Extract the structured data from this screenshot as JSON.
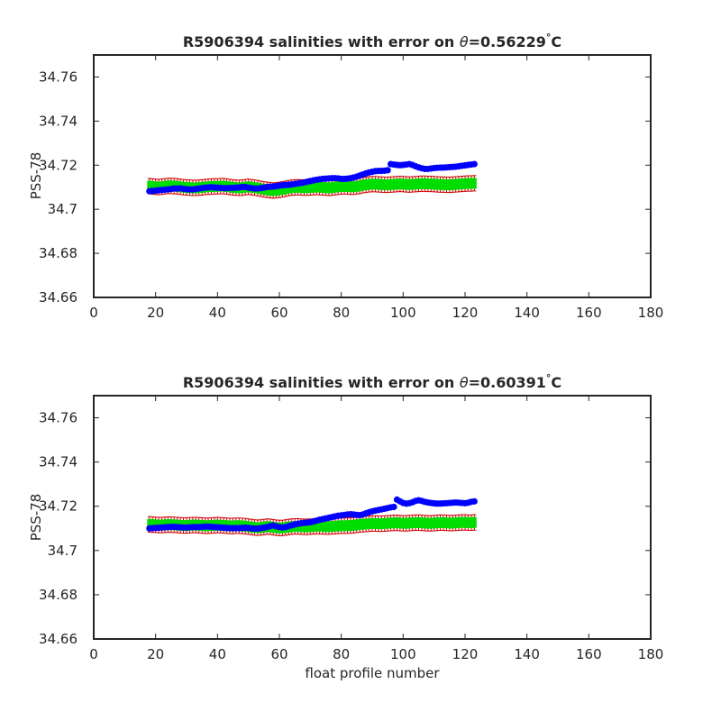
{
  "chart_data": [
    {
      "type": "scatter",
      "title_prefix": "R5906394 salinities with error on ",
      "title_theta": "θ",
      "title_value": "=0.56229",
      "title_degree": "°",
      "title_unit": "C",
      "xlabel": "",
      "ylabel": "PSS-78",
      "xlim": [
        0,
        180
      ],
      "ylim": [
        34.66,
        34.77
      ],
      "xticks": [
        "0",
        "20",
        "40",
        "60",
        "80",
        "100",
        "120",
        "140",
        "160",
        "180"
      ],
      "yticks": [
        "34.66",
        "34.68",
        "34.7",
        "34.72",
        "34.74",
        "34.76"
      ],
      "grid": false,
      "series": [
        {
          "role": "measured",
          "color": "#0000ff",
          "x_start": 18,
          "x_step": 1,
          "values": [
            34.7082,
            34.7083,
            34.7084,
            34.7086,
            34.7087,
            34.7089,
            34.709,
            34.7092,
            34.7094,
            34.7094,
            34.7095,
            34.7093,
            34.7091,
            34.709,
            34.709,
            34.7092,
            34.7094,
            34.7096,
            34.7098,
            34.7099,
            34.71,
            34.7099,
            34.7098,
            34.7097,
            34.7096,
            34.7096,
            34.7097,
            34.7097,
            34.7098,
            34.7099,
            34.7101,
            34.7101,
            34.7098,
            34.7096,
            34.7094,
            34.7094,
            34.7096,
            34.7098,
            34.7101,
            34.7102,
            34.7103,
            34.7105,
            34.7107,
            34.7109,
            34.711,
            34.7111,
            34.7113,
            34.7115,
            34.7117,
            34.7119,
            34.7122,
            34.7125,
            34.7128,
            34.7131,
            34.7134,
            34.7136,
            34.7138,
            34.7139,
            34.714,
            34.7141,
            34.7141,
            34.714,
            34.7138,
            34.7138,
            34.7139,
            34.7141,
            34.7144,
            34.7148,
            34.7153,
            34.7158,
            34.7163,
            34.7167,
            34.717,
            34.7173,
            34.7174,
            34.7174,
            34.7175,
            34.7177,
            34.7205,
            34.7203,
            34.7201,
            34.72,
            34.7201,
            34.7203,
            34.7205,
            34.7201,
            34.7195,
            34.719,
            34.7186,
            34.7183,
            34.7183,
            34.7185,
            34.7187,
            34.7188,
            34.7189,
            34.7189,
            34.719,
            34.7191,
            34.7192,
            34.7193,
            34.7195,
            34.7197,
            34.7199,
            34.7201,
            34.7203,
            34.7205
          ]
        },
        {
          "role": "mapped",
          "color": "#00dd00",
          "x_start": 18,
          "x_step": 1,
          "values": [
            34.7105,
            34.7103,
            34.7102,
            34.7101,
            34.7102,
            34.7104,
            34.7106,
            34.7106,
            34.7105,
            34.7104,
            34.7102,
            34.71,
            34.7099,
            34.7098,
            34.7097,
            34.7097,
            34.7098,
            34.7099,
            34.7101,
            34.7102,
            34.7103,
            34.7104,
            34.7104,
            34.7105,
            34.7105,
            34.7103,
            34.7101,
            34.7099,
            34.7098,
            34.7097,
            34.7098,
            34.71,
            34.7102,
            34.71,
            34.7098,
            34.7096,
            34.7093,
            34.709,
            34.7088,
            34.7086,
            34.7085,
            34.7086,
            34.7088,
            34.709,
            34.7093,
            34.7096,
            34.7098,
            34.7099,
            34.71,
            34.7099,
            34.7098,
            34.7098,
            34.7099,
            34.71,
            34.7101,
            34.71,
            34.7099,
            34.7098,
            34.7097,
            34.7098,
            34.71,
            34.7102,
            34.7103,
            34.7104,
            34.7103,
            34.7102,
            34.7102,
            34.7104,
            34.7106,
            34.7109,
            34.7111,
            34.7113,
            34.7114,
            34.7114,
            34.7113,
            34.7112,
            34.7111,
            34.7111,
            34.7112,
            34.7113,
            34.7114,
            34.7115,
            34.7114,
            34.7113,
            34.7112,
            34.7113,
            34.7114,
            34.7115,
            34.7116,
            34.7116,
            34.7115,
            34.7115,
            34.7114,
            34.7113,
            34.7112,
            34.7112,
            34.7111,
            34.7111,
            34.7112,
            34.7113,
            34.7114,
            34.7115,
            34.7116,
            34.7117,
            34.7117,
            34.7118
          ]
        }
      ],
      "error_half_width": 0.0035,
      "error_color": "#cc0000"
    },
    {
      "type": "scatter",
      "title_prefix": "R5906394 salinities with error on ",
      "title_theta": "θ",
      "title_value": "=0.60391",
      "title_degree": "°",
      "title_unit": "C",
      "xlabel": "float profile number",
      "ylabel": "PSS-78",
      "xlim": [
        0,
        180
      ],
      "ylim": [
        34.66,
        34.77
      ],
      "xticks": [
        "0",
        "20",
        "40",
        "60",
        "80",
        "100",
        "120",
        "140",
        "160",
        "180"
      ],
      "yticks": [
        "34.66",
        "34.68",
        "34.7",
        "34.72",
        "34.74",
        "34.76"
      ],
      "grid": false,
      "series": [
        {
          "role": "measured",
          "color": "#0000ff",
          "x_start": 18,
          "x_step": 1,
          "values": [
            34.71,
            34.7101,
            34.7102,
            34.7103,
            34.7104,
            34.7105,
            34.7106,
            34.7107,
            34.7107,
            34.7106,
            34.7105,
            34.7104,
            34.7104,
            34.7105,
            34.7106,
            34.7106,
            34.7106,
            34.7107,
            34.7108,
            34.7108,
            34.7107,
            34.7106,
            34.7105,
            34.7104,
            34.7103,
            34.7102,
            34.7101,
            34.7101,
            34.7101,
            34.7101,
            34.7102,
            34.7103,
            34.7102,
            34.71,
            34.7099,
            34.7099,
            34.7101,
            34.7103,
            34.7106,
            34.711,
            34.7113,
            34.7109,
            34.7106,
            34.7104,
            34.7106,
            34.711,
            34.7114,
            34.7118,
            34.7121,
            34.7123,
            34.7125,
            34.7126,
            34.7128,
            34.7131,
            34.7135,
            34.7139,
            34.7142,
            34.7145,
            34.7148,
            34.7151,
            34.7154,
            34.7157,
            34.7159,
            34.7161,
            34.7163,
            34.7164,
            34.7163,
            34.7161,
            34.716,
            34.7163,
            34.7168,
            34.7173,
            34.7177,
            34.718,
            34.7183,
            34.7186,
            34.7189,
            34.7192,
            34.7195,
            34.7197,
            34.723,
            34.7222,
            34.7215,
            34.7212,
            34.7214,
            34.7218,
            34.7224,
            34.7227,
            34.7224,
            34.722,
            34.7217,
            34.7215,
            34.7213,
            34.7212,
            34.7212,
            34.7213,
            34.7214,
            34.7215,
            34.7216,
            34.7217,
            34.7216,
            34.7215,
            34.7214,
            34.7216,
            34.722,
            34.7222
          ]
        },
        {
          "role": "mapped",
          "color": "#00dd00",
          "x_start": 18,
          "x_step": 1,
          "values": [
            34.7118,
            34.7117,
            34.7116,
            34.7115,
            34.7115,
            34.7116,
            34.7117,
            34.7117,
            34.7116,
            34.7115,
            34.7114,
            34.7113,
            34.7113,
            34.7114,
            34.7115,
            34.7115,
            34.7114,
            34.7113,
            34.7112,
            34.7112,
            34.7113,
            34.7114,
            34.7115,
            34.7114,
            34.7113,
            34.7112,
            34.7111,
            34.7111,
            34.7112,
            34.7112,
            34.7111,
            34.711,
            34.7108,
            34.7106,
            34.7104,
            34.7103,
            34.7104,
            34.7106,
            34.7108,
            34.7107,
            34.7105,
            34.7103,
            34.7102,
            34.7102,
            34.7104,
            34.7106,
            34.7108,
            34.7109,
            34.7109,
            34.7108,
            34.7107,
            34.7107,
            34.7108,
            34.7109,
            34.711,
            34.711,
            34.7109,
            34.7108,
            34.7108,
            34.7109,
            34.711,
            34.7111,
            34.7112,
            34.7112,
            34.7112,
            34.7113,
            34.7114,
            34.7116,
            34.7118,
            34.7119,
            34.712,
            34.7121,
            34.7122,
            34.7122,
            34.7121,
            34.7121,
            34.7122,
            34.7123,
            34.7124,
            34.7125,
            34.7125,
            34.7124,
            34.7123,
            34.7123,
            34.7124,
            34.7125,
            34.7126,
            34.7126,
            34.7125,
            34.7124,
            34.7123,
            34.7123,
            34.7124,
            34.7125,
            34.7126,
            34.7126,
            34.7125,
            34.7124,
            34.7124,
            34.7125,
            34.7126,
            34.7127,
            34.7127,
            34.7126,
            34.7126,
            34.7127
          ]
        }
      ],
      "error_half_width": 0.0035,
      "error_color": "#cc0000"
    }
  ]
}
